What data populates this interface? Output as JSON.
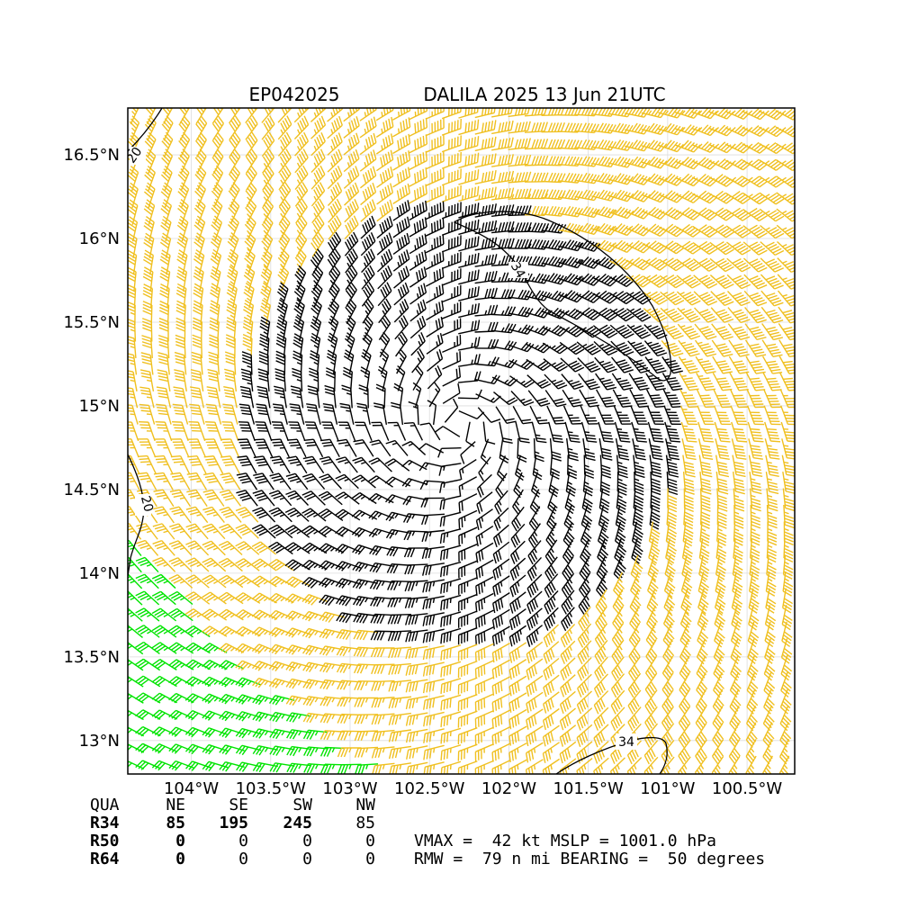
{
  "header": {
    "storm_id": "EP042025",
    "storm_title": "DALILA 2025 13 Jun 21UTC"
  },
  "chart_data": {
    "type": "wind-barb-map",
    "lon_range": [
      -104.4,
      -100.2
    ],
    "lat_range": [
      12.8,
      16.78
    ],
    "x_ticks": [
      {
        "value": -104.0,
        "label": "104°W"
      },
      {
        "value": -103.5,
        "label": "103.5°W"
      },
      {
        "value": -103.0,
        "label": "103°W"
      },
      {
        "value": -102.5,
        "label": "102.5°W"
      },
      {
        "value": -102.0,
        "label": "102°W"
      },
      {
        "value": -101.5,
        "label": "101.5°W"
      },
      {
        "value": -101.0,
        "label": "101°W"
      },
      {
        "value": -100.5,
        "label": "100.5°W"
      }
    ],
    "y_ticks": [
      {
        "value": 16.5,
        "label": "16.5°N"
      },
      {
        "value": 16.0,
        "label": "16°N"
      },
      {
        "value": 15.5,
        "label": "15.5°N"
      },
      {
        "value": 15.0,
        "label": "15°N"
      },
      {
        "value": 14.5,
        "label": "14.5°N"
      },
      {
        "value": 14.0,
        "label": "14°N"
      },
      {
        "value": 13.5,
        "label": "13.5°N"
      },
      {
        "value": 13.0,
        "label": "13°N"
      }
    ],
    "grid": true,
    "storm_center": {
      "lon": -102.32,
      "lat": 14.88
    },
    "vmax_kt": 42,
    "rmw_nmi": 79,
    "barb_colors": {
      "below_34kt": "#00e400",
      "34_to_50kt": "#f0c020",
      "inner_core": "#000000"
    },
    "contours": [
      {
        "level": "34",
        "label": "34",
        "location": "northeast quadrant"
      },
      {
        "level": "34",
        "label": "34",
        "location": "south edge"
      },
      {
        "level": "20",
        "label": "20",
        "location": "west edge"
      },
      {
        "level": "20",
        "label": "20",
        "location": "northwest corner"
      }
    ]
  },
  "wind_radii_table": {
    "header": [
      "QUA",
      "NE",
      "SE",
      "SW",
      "NW"
    ],
    "rows": [
      [
        "R34",
        "85",
        "195",
        "245",
        "85"
      ],
      [
        "R50",
        "0",
        "0",
        "0",
        "0"
      ],
      [
        "R64",
        "0",
        "0",
        "0",
        "0"
      ]
    ]
  },
  "storm_info": {
    "line1": "VMAX =  42 kt MSLP = 1001.0 hPa",
    "line2": "RMW =  79 n mi BEARING =  50 degrees"
  }
}
